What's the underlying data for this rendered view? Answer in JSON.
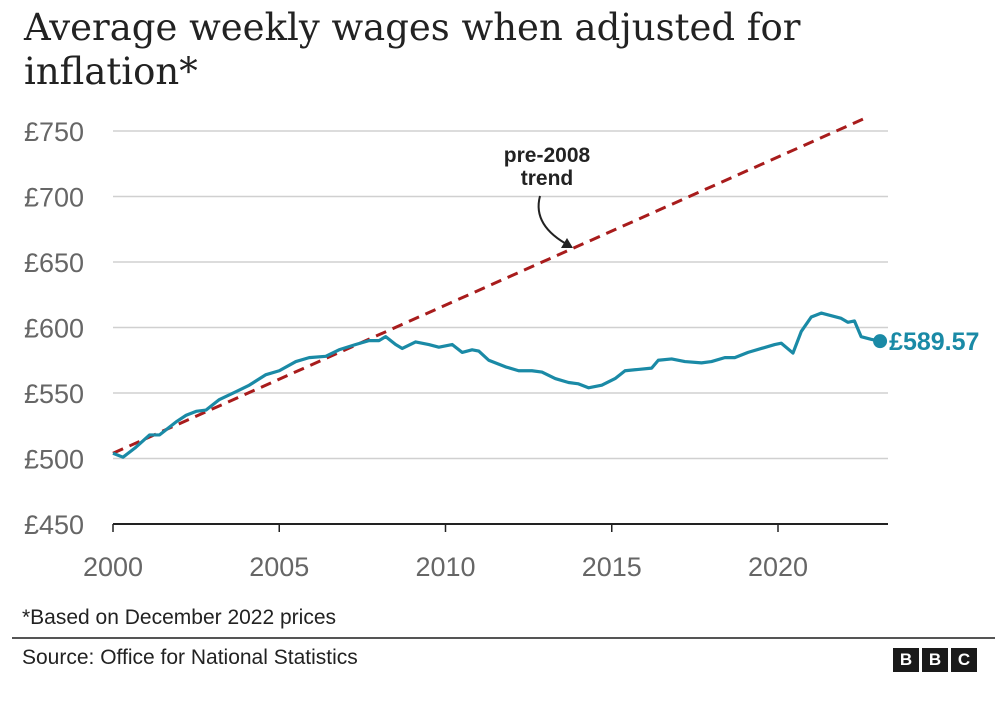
{
  "chart_data": {
    "type": "line",
    "title": "Average weekly wages when adjusted for inflation*",
    "xlabel": "",
    "ylabel": "",
    "xlim": [
      2000,
      2023.4
    ],
    "ylim": [
      450,
      750
    ],
    "x_ticks": [
      2000,
      2005,
      2010,
      2015,
      2020
    ],
    "x_tick_labels": [
      "2000",
      "2005",
      "2010",
      "2015",
      "2020"
    ],
    "y_ticks": [
      450,
      500,
      550,
      600,
      650,
      700,
      750
    ],
    "y_tick_labels": [
      "£450",
      "£500",
      "£550",
      "£600",
      "£650",
      "£700",
      "£750"
    ],
    "grid": "horizontal",
    "series": [
      {
        "color": "#1a8aa6",
        "style": "solid",
        "points": [
          [
            2000.0,
            504
          ],
          [
            2000.3,
            501
          ],
          [
            2000.66,
            508
          ],
          [
            2001.1,
            518
          ],
          [
            2001.4,
            518
          ],
          [
            2001.9,
            528
          ],
          [
            2002.2,
            533
          ],
          [
            2002.5,
            536
          ],
          [
            2002.8,
            537
          ],
          [
            2003.2,
            545
          ],
          [
            2003.7,
            551
          ],
          [
            2004.1,
            556
          ],
          [
            2004.6,
            564
          ],
          [
            2005.0,
            567
          ],
          [
            2005.5,
            574
          ],
          [
            2005.9,
            577
          ],
          [
            2006.4,
            578
          ],
          [
            2006.8,
            583
          ],
          [
            2007.3,
            587
          ],
          [
            2007.7,
            590
          ],
          [
            2008.0,
            590
          ],
          [
            2008.2,
            593
          ],
          [
            2008.5,
            587
          ],
          [
            2008.7,
            584
          ],
          [
            2009.1,
            589
          ],
          [
            2009.5,
            587
          ],
          [
            2009.8,
            585
          ],
          [
            2010.2,
            587
          ],
          [
            2010.5,
            581
          ],
          [
            2010.8,
            583
          ],
          [
            2011.0,
            582
          ],
          [
            2011.3,
            575
          ],
          [
            2011.8,
            570
          ],
          [
            2012.2,
            567
          ],
          [
            2012.6,
            567
          ],
          [
            2012.9,
            566
          ],
          [
            2013.3,
            561
          ],
          [
            2013.7,
            558
          ],
          [
            2014.0,
            557
          ],
          [
            2014.3,
            554
          ],
          [
            2014.7,
            556
          ],
          [
            2015.1,
            561
          ],
          [
            2015.4,
            567
          ],
          [
            2015.8,
            568
          ],
          [
            2016.2,
            569
          ],
          [
            2016.4,
            575
          ],
          [
            2016.8,
            576
          ],
          [
            2017.2,
            574
          ],
          [
            2017.7,
            573
          ],
          [
            2018.0,
            574
          ],
          [
            2018.4,
            577
          ],
          [
            2018.7,
            577
          ],
          [
            2019.1,
            581
          ],
          [
            2019.5,
            584
          ],
          [
            2019.9,
            587
          ],
          [
            2020.1,
            588
          ],
          [
            2020.45,
            580.5
          ],
          [
            2020.7,
            597
          ],
          [
            2021.0,
            608
          ],
          [
            2021.3,
            611
          ],
          [
            2021.6,
            609
          ],
          [
            2021.9,
            607
          ],
          [
            2022.1,
            604
          ],
          [
            2022.3,
            605
          ],
          [
            2022.5,
            593
          ],
          [
            2022.8,
            591
          ],
          [
            2023.07,
            589.57
          ]
        ],
        "end_label": "£589.57"
      },
      {
        "color": "#a81c1c",
        "style": "dashed",
        "points": [
          [
            2000.0,
            504
          ],
          [
            2022.7,
            760.7
          ]
        ]
      }
    ],
    "annotations": [
      {
        "text_line1": "pre-2008",
        "text_line2": "trend",
        "points_to": [
          2013.9,
          661
        ]
      }
    ]
  },
  "footnote": "*Based on December 2022 prices",
  "source": "Source: Office for National Statistics",
  "logo": [
    "B",
    "B",
    "C"
  ]
}
